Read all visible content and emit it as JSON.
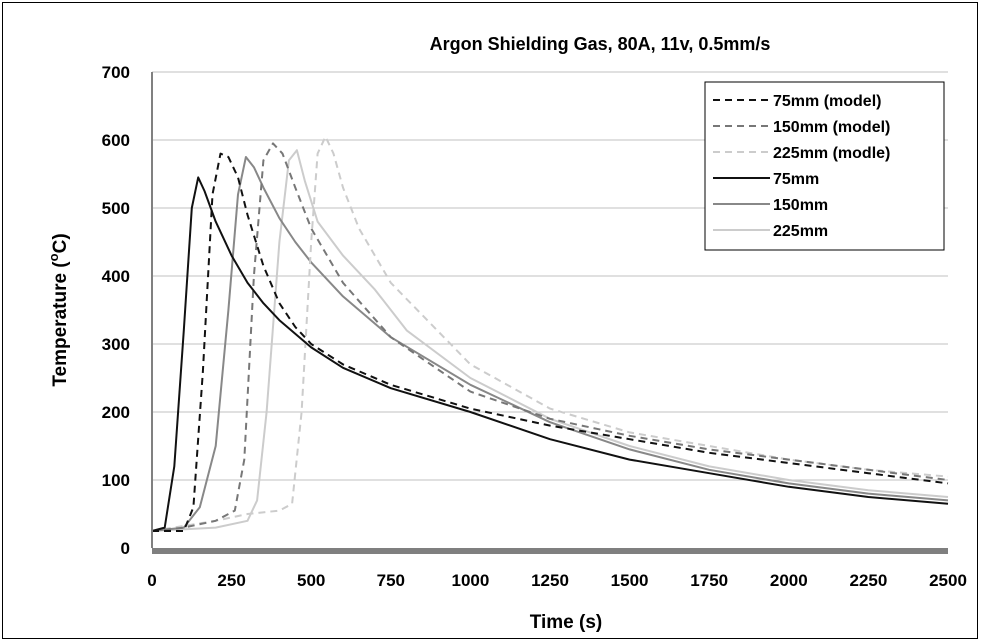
{
  "chart_data": {
    "type": "line",
    "title": "Argon Shielding Gas, 80A, 11v, 0.5mm/s",
    "xlabel": "Time (s)",
    "ylabel_main": "Temperature (",
    "ylabel_sup": "o",
    "ylabel_end": "C)",
    "xlim": [
      0,
      2500
    ],
    "ylim": [
      0,
      700
    ],
    "xticks": [
      "0",
      "250",
      "500",
      "750",
      "1000",
      "1250",
      "1500",
      "1750",
      "2000",
      "2250",
      "2500"
    ],
    "yticks": [
      "0",
      "100",
      "200",
      "300",
      "400",
      "500",
      "600",
      "700"
    ],
    "grid": "horizontal",
    "legend_position": "top-right",
    "series": [
      {
        "name": "75mm (model)",
        "color": "#111111",
        "dash": "dashed",
        "x": [
          0,
          100,
          130,
          160,
          190,
          215,
          240,
          270,
          300,
          350,
          400,
          450,
          500,
          600,
          750,
          1000,
          1250,
          1500,
          1750,
          2000,
          2250,
          2500
        ],
        "y": [
          25,
          25,
          60,
          260,
          520,
          580,
          575,
          545,
          490,
          415,
          360,
          325,
          300,
          270,
          240,
          205,
          180,
          160,
          140,
          125,
          110,
          95
        ]
      },
      {
        "name": "150mm (model)",
        "color": "#777777",
        "dash": "dashed",
        "x": [
          0,
          100,
          200,
          260,
          290,
          320,
          350,
          380,
          410,
          450,
          500,
          600,
          750,
          1000,
          1250,
          1500,
          1750,
          2000,
          2250,
          2500
        ],
        "y": [
          25,
          30,
          40,
          55,
          130,
          400,
          570,
          595,
          580,
          530,
          470,
          390,
          310,
          230,
          190,
          165,
          145,
          130,
          115,
          100
        ]
      },
      {
        "name": "225mm (modle)",
        "color": "#cccccc",
        "dash": "dashed",
        "x": [
          0,
          200,
          300,
          400,
          440,
          470,
          500,
          520,
          545,
          570,
          600,
          650,
          750,
          1000,
          1250,
          1500,
          1750,
          2000,
          2250,
          2500
        ],
        "y": [
          25,
          40,
          50,
          55,
          65,
          200,
          450,
          580,
          605,
          580,
          530,
          470,
          390,
          270,
          205,
          170,
          150,
          130,
          115,
          105
        ]
      },
      {
        "name": "75mm",
        "color": "#111111",
        "dash": "solid",
        "x": [
          0,
          40,
          70,
          100,
          125,
          145,
          165,
          200,
          250,
          300,
          350,
          400,
          500,
          600,
          750,
          1000,
          1250,
          1500,
          1750,
          2000,
          2250,
          2500
        ],
        "y": [
          25,
          30,
          120,
          320,
          500,
          545,
          525,
          480,
          430,
          390,
          360,
          335,
          295,
          265,
          235,
          200,
          160,
          130,
          110,
          90,
          75,
          65
        ]
      },
      {
        "name": "150mm",
        "color": "#888888",
        "dash": "solid",
        "x": [
          0,
          100,
          150,
          200,
          240,
          270,
          295,
          320,
          350,
          400,
          450,
          500,
          600,
          750,
          1000,
          1250,
          1500,
          1750,
          2000,
          2250,
          2500
        ],
        "y": [
          25,
          30,
          60,
          150,
          350,
          520,
          575,
          560,
          530,
          485,
          450,
          420,
          370,
          310,
          240,
          185,
          145,
          115,
          95,
          80,
          70
        ]
      },
      {
        "name": "225mm",
        "color": "#cccccc",
        "dash": "solid",
        "x": [
          0,
          200,
          300,
          330,
          360,
          400,
          430,
          455,
          480,
          520,
          600,
          700,
          800,
          1000,
          1250,
          1500,
          1750,
          2000,
          2250,
          2500
        ],
        "y": [
          25,
          30,
          40,
          70,
          200,
          450,
          570,
          585,
          540,
          480,
          430,
          380,
          320,
          250,
          190,
          150,
          120,
          100,
          85,
          75
        ]
      }
    ]
  }
}
